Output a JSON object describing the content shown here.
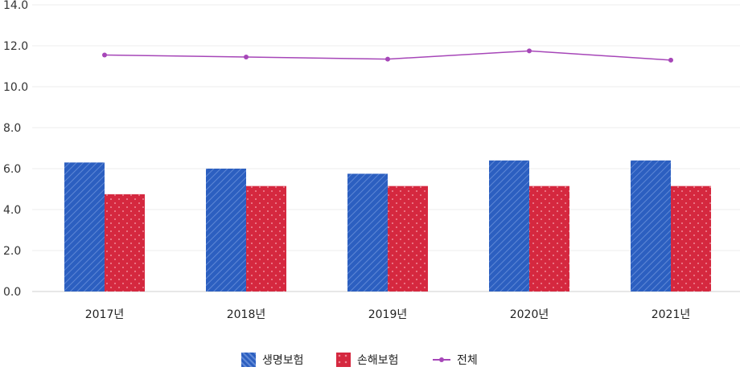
{
  "chart_data": {
    "type": "bar",
    "categories": [
      "2017년",
      "2018년",
      "2019년",
      "2020년",
      "2021년"
    ],
    "series": [
      {
        "name": "생명보험",
        "kind": "bar",
        "color": "#2c5fc0",
        "pattern": "diagonal-stripes",
        "values": [
          6.3,
          6.0,
          5.75,
          6.4,
          6.4
        ]
      },
      {
        "name": "손해보험",
        "kind": "bar",
        "color": "#d5283f",
        "pattern": "dots",
        "values": [
          4.75,
          5.15,
          5.15,
          5.15,
          5.15
        ]
      },
      {
        "name": "전체",
        "kind": "line",
        "color": "#a646b8",
        "values": [
          11.55,
          11.45,
          11.35,
          11.75,
          11.3
        ]
      }
    ],
    "ylim": [
      0,
      14
    ],
    "yticks": [
      "0.0",
      "2.0",
      "4.0",
      "6.0",
      "8.0",
      "10.0",
      "12.0",
      "14.0"
    ],
    "grid": true,
    "legend_position": "bottom"
  }
}
